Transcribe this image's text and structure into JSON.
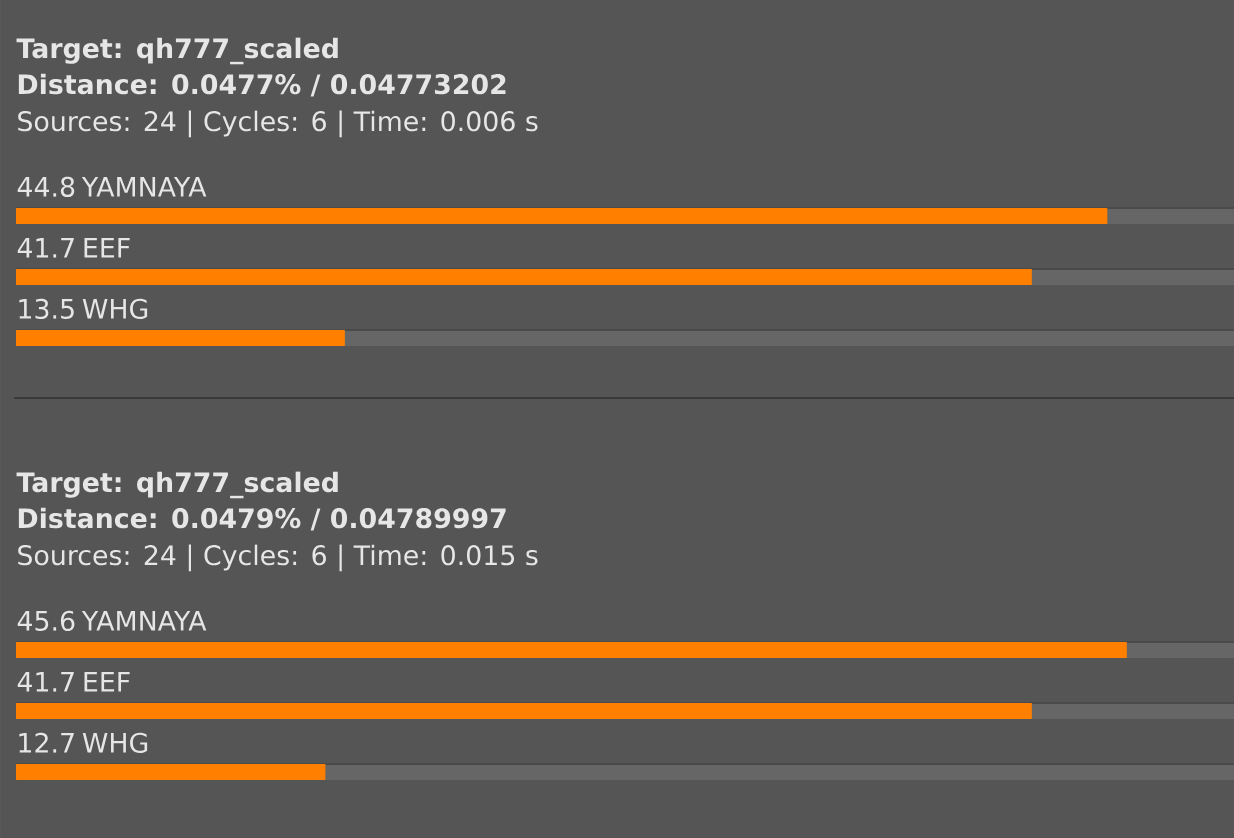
{
  "chart_data": [
    {
      "type": "bar",
      "orientation": "horizontal",
      "title": "Target: qh777_scaled",
      "subtitle": "Distance: 0.0477% / 0.04773202",
      "annotations": [
        "Sources: 24 | Cycles: 6 | Time: 0.006 s"
      ],
      "categories": [
        "YAMNAYA",
        "EEF",
        "WHG"
      ],
      "values": [
        44.8,
        41.7,
        13.5
      ],
      "color": "#ff8000",
      "data_labels": true,
      "xlim": [
        0,
        50
      ]
    },
    {
      "type": "bar",
      "orientation": "horizontal",
      "title": "Target: qh777_scaled",
      "subtitle": "Distance: 0.0479% / 0.04789997",
      "annotations": [
        "Sources: 24 | Cycles: 6 | Time: 0.015 s"
      ],
      "categories": [
        "YAMNAYA",
        "EEF",
        "WHG"
      ],
      "values": [
        45.6,
        41.7,
        12.7
      ],
      "color": "#ff8000",
      "data_labels": true,
      "xlim": [
        0,
        50
      ]
    }
  ]
}
